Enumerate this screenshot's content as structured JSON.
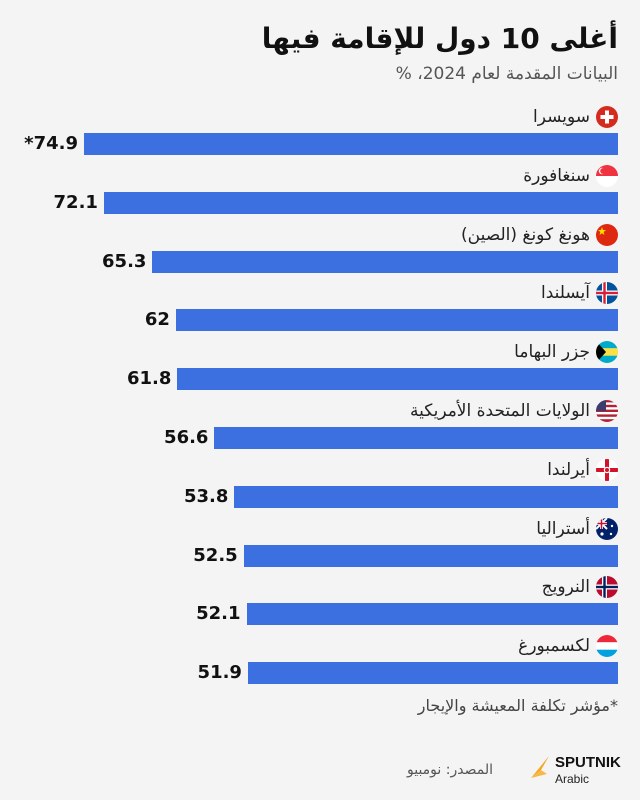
{
  "chart_data": {
    "type": "bar",
    "orientation": "horizontal",
    "title": "أغلى 10 دول للإقامة فيها",
    "subtitle": "البيانات المقدمة لعام 2024، %",
    "categories": [
      "سويسرا",
      "سنغافورة",
      "هونغ كونغ (الصين)",
      "آيسلندا",
      "جزر البهاما",
      "الولايات المتحدة الأمريكية",
      "أيرلندا",
      "أستراليا",
      "النرويج",
      "لكسمبورغ"
    ],
    "values": [
      74.9,
      72.1,
      65.3,
      62,
      61.8,
      56.6,
      53.8,
      52.5,
      52.1,
      51.9
    ],
    "value_labels": [
      "*74.9",
      "72.1",
      "65.3",
      "62",
      "61.8",
      "56.6",
      "53.8",
      "52.5",
      "52.1",
      "51.9"
    ],
    "flags": [
      "switzerland-flag",
      "singapore-flag",
      "china-flag",
      "iceland-flag",
      "bahamas-flag",
      "usa-flag",
      "northern-ireland-flag",
      "australia-flag",
      "norway-flag",
      "luxembourg-flag"
    ],
    "bar_color": "#3c6fe0",
    "grid": false,
    "legend": "none"
  },
  "footnote": "*مؤشر تكلفة المعيشة والإيجار",
  "source": "المصدر: نومبيو",
  "brand": {
    "name": "SPUTNIK",
    "sub": "Arabic",
    "color": "#f5a623"
  }
}
